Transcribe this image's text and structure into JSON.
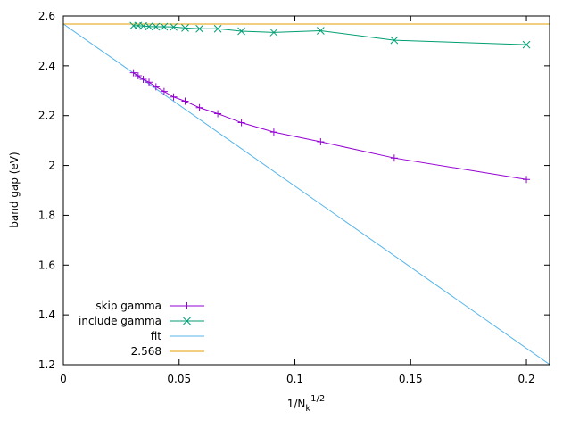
{
  "chart_data": {
    "type": "line",
    "title": "",
    "xlabel": "1/N",
    "xlabel_sub": "k",
    "xlabel_sup": "1/2",
    "ylabel": "band gap (eV)",
    "xlim": [
      0,
      0.21
    ],
    "ylim": [
      1.2,
      2.6
    ],
    "x_ticks": [
      {
        "value": 0,
        "label": "0"
      },
      {
        "value": 0.05,
        "label": "0.05"
      },
      {
        "value": 0.1,
        "label": "0.1"
      },
      {
        "value": 0.15,
        "label": "0.15"
      },
      {
        "value": 0.2,
        "label": "0.2"
      }
    ],
    "y_ticks": [
      {
        "value": 1.2,
        "label": "1.2"
      },
      {
        "value": 1.4,
        "label": "1.4"
      },
      {
        "value": 1.6,
        "label": "1.6"
      },
      {
        "value": 1.8,
        "label": "1.8"
      },
      {
        "value": 2.0,
        "label": "2"
      },
      {
        "value": 2.2,
        "label": "2.2"
      },
      {
        "value": 2.4,
        "label": "2.4"
      },
      {
        "value": 2.6,
        "label": "2.6"
      }
    ],
    "grid": false,
    "legend_position": "bottom-left",
    "series": [
      {
        "name": "skip gamma",
        "color": "#9400d3",
        "marker": "plus",
        "x": [
          0.0303,
          0.0323,
          0.0345,
          0.037,
          0.04,
          0.0435,
          0.0476,
          0.0526,
          0.0588,
          0.0667,
          0.0769,
          0.0909,
          0.1111,
          0.1429,
          0.2
        ],
        "y": [
          2.372,
          2.36,
          2.346,
          2.334,
          2.316,
          2.297,
          2.275,
          2.258,
          2.232,
          2.208,
          2.172,
          2.134,
          2.095,
          2.03,
          1.944
        ]
      },
      {
        "name": "include gamma",
        "color": "#009e73",
        "marker": "x",
        "x": [
          0.0303,
          0.0323,
          0.0345,
          0.037,
          0.04,
          0.0435,
          0.0476,
          0.0526,
          0.0588,
          0.0667,
          0.0769,
          0.0909,
          0.1111,
          0.1429,
          0.2
        ],
        "y": [
          2.561,
          2.561,
          2.56,
          2.558,
          2.557,
          2.557,
          2.556,
          2.552,
          2.549,
          2.549,
          2.539,
          2.534,
          2.541,
          2.503,
          2.485
        ]
      },
      {
        "name": "fit",
        "color": "#56b4e9",
        "marker": "none",
        "x": [
          0,
          0.21
        ],
        "y": [
          2.568,
          1.201
        ]
      },
      {
        "name": "2.568",
        "color": "#e69f00",
        "marker": "none",
        "x": [
          0,
          0.21
        ],
        "y": [
          2.568,
          2.568
        ]
      }
    ]
  }
}
